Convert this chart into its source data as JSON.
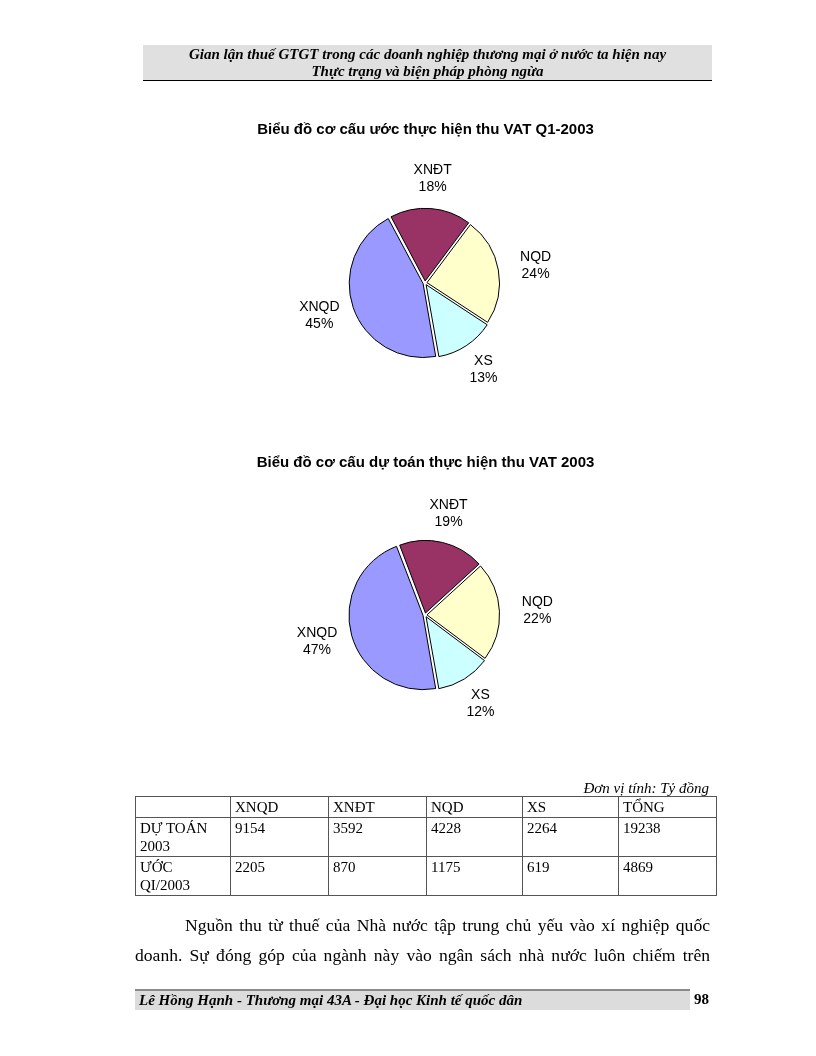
{
  "chart_data": [
    {
      "type": "pie",
      "title": "Biểu đồ cơ cấu ước thực hiện thu VAT Q1-2003",
      "categories": [
        "XNQD",
        "XNĐT",
        "NQD",
        "XS"
      ],
      "values": [
        45,
        18,
        24,
        13
      ],
      "value_labels": [
        "45%",
        "18%",
        "24%",
        "13%"
      ],
      "colors": [
        "#9999ff",
        "#993366",
        "#ffffcc",
        "#ccffff"
      ],
      "legend": false,
      "annotations": [
        "Gian lận thuế GTGT trong các doanh nghiệp thương mại ở nước ta hiện nay",
        "Thực trạng và biện pháp phòng ngừa"
      ]
    },
    {
      "type": "pie",
      "title": "Biểu đồ cơ cấu dự toán thực hiện thu VAT 2003",
      "categories": [
        "XNQD",
        "XNĐT",
        "NQD",
        "XS"
      ],
      "values": [
        47,
        19,
        22,
        12
      ],
      "value_labels": [
        "47%",
        "19%",
        "22%",
        "12%"
      ],
      "colors": [
        "#9999ff",
        "#993366",
        "#ffffcc",
        "#ccffff"
      ],
      "legend": false
    },
    {
      "type": "other",
      "categories": [
        "XNQD",
        "XNĐT",
        "NQD",
        "XS",
        "TỔNG"
      ],
      "series": [
        {
          "name": "DỰ TOÁN 2003",
          "values": [
            9154,
            3592,
            4228,
            2264,
            19238
          ]
        },
        {
          "name": "ƯỚC QI/2003",
          "values": [
            2205,
            870,
            1175,
            619,
            4869
          ]
        }
      ],
      "data_labels": true,
      "annotations": [
        "Đơn vị tính: Tỷ đồng",
        "Nguồn thu từ thuế của Nhà nước tập trung chủ yếu vào xí nghiệp quốc doanh. Sự đóng góp của ngành này vào ngân sách nhà nước luôn chiếm trên",
        "Lê Hồng Hạnh - Thương mại 43A - Đại học Kinh tế quốc dân",
        "98"
      ]
    }
  ]
}
